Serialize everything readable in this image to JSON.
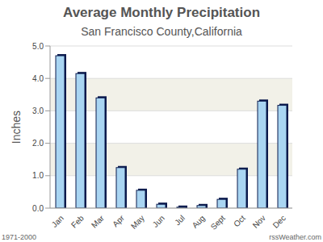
{
  "chart_data": {
    "type": "bar",
    "title": "Average Monthly Precipitation",
    "subtitle": "San Francisco County,California",
    "ylabel": "Inches",
    "categories": [
      "Jan",
      "Feb",
      "Mar",
      "Apr",
      "May",
      "Jun",
      "Jul",
      "Aug",
      "Sept",
      "Oct",
      "Nov",
      "Dec"
    ],
    "values": [
      4.7,
      4.15,
      3.4,
      1.25,
      0.55,
      0.12,
      0.03,
      0.08,
      0.27,
      1.2,
      3.3,
      3.17
    ],
    "color": "#a9d5f2",
    "ylim": [
      0,
      5
    ],
    "yticks": [
      {
        "value": 0,
        "label": "0.0"
      },
      {
        "value": 1,
        "label": "1.0"
      },
      {
        "value": 2,
        "label": "2.0"
      },
      {
        "value": 3,
        "label": "3.0"
      },
      {
        "value": 4,
        "label": "4.0"
      },
      {
        "value": 5,
        "label": "5.0"
      }
    ],
    "grid": true,
    "annotations": [
      "1971-2000",
      "rssWeather.com"
    ]
  }
}
